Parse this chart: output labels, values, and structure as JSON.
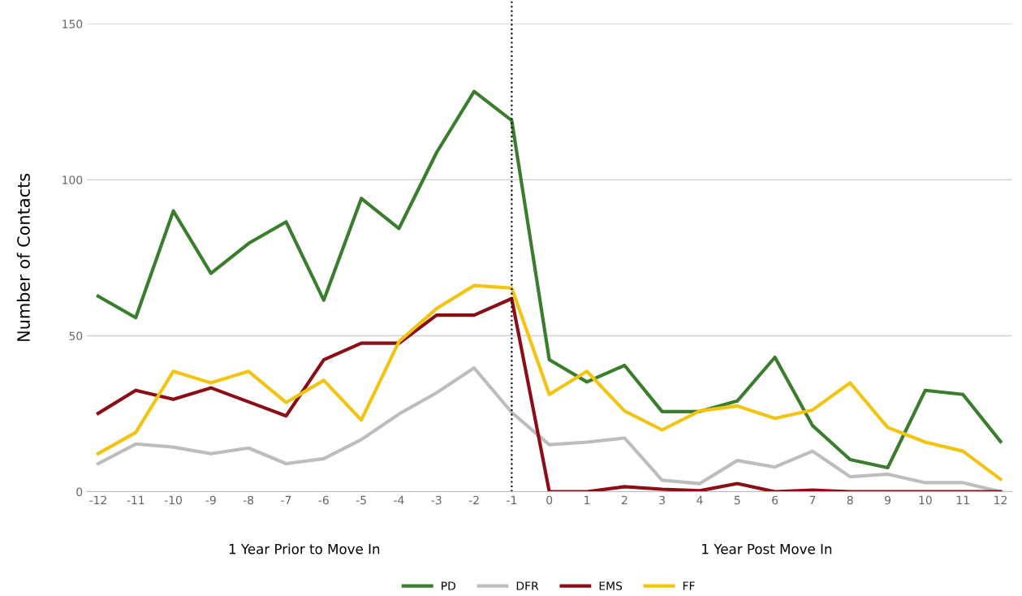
{
  "chart_data": {
    "type": "line",
    "ylabel": "Number of Contacts",
    "categories": [
      "-12",
      "-11",
      "-10",
      "-9",
      "-8",
      "-7",
      "-6",
      "-5",
      "-4",
      "-3",
      "-2",
      "-1",
      "0",
      "1",
      "2",
      "3",
      "4",
      "5",
      "6",
      "7",
      "8",
      "9",
      "10",
      "11",
      "12"
    ],
    "series": [
      {
        "name": "PD",
        "color": "#3a7d2c",
        "values": [
          62.7,
          55.8,
          90,
          70,
          79.6,
          86.5,
          61.4,
          94,
          84.4,
          108.7,
          128.3,
          119,
          42.3,
          35.2,
          40.5,
          25.7,
          25.7,
          29.1,
          43.1,
          21.2,
          10.3,
          7.7,
          32.5,
          31.2,
          16.1
        ]
      },
      {
        "name": "DFR",
        "color": "#bdbdbd",
        "values": [
          9,
          15.3,
          14.3,
          12.2,
          14,
          9,
          10.6,
          16.7,
          24.9,
          31.7,
          39.7,
          25.4,
          15.1,
          15.9,
          17.2,
          3.7,
          2.6,
          10,
          7.9,
          13,
          4.8,
          5.6,
          2.9,
          2.9,
          0
        ]
      },
      {
        "name": "EMS",
        "color": "#8b0d16",
        "values": [
          25.1,
          32.5,
          29.6,
          33.3,
          28.8,
          24.3,
          42.3,
          47.6,
          47.6,
          56.6,
          56.6,
          61.9,
          0,
          0,
          1.6,
          0.8,
          0.3,
          2.6,
          0,
          0.5,
          0,
          0,
          0,
          0,
          0
        ]
      },
      {
        "name": "FF",
        "color": "#f2c40f",
        "values": [
          12.2,
          19,
          38.6,
          34.9,
          38.6,
          28.6,
          35.7,
          23,
          48.1,
          58.7,
          66.1,
          65.3,
          31.2,
          38.6,
          25.9,
          19.8,
          25.9,
          27.5,
          23.5,
          26.2,
          34.9,
          20.6,
          15.9,
          13,
          4
        ]
      }
    ],
    "ylim": [
      0,
      150
    ],
    "yticks": [
      0,
      50,
      100,
      150
    ],
    "grid": "y",
    "legend": "bottom",
    "marker": "none",
    "line_style": "solid",
    "ref_lines": [
      {
        "axis": "x",
        "value": "-1",
        "color": "#000000",
        "line_style": "dotted"
      }
    ],
    "annotations": [
      "1 Year Prior to Move In",
      "1 Year Post Move In"
    ]
  }
}
